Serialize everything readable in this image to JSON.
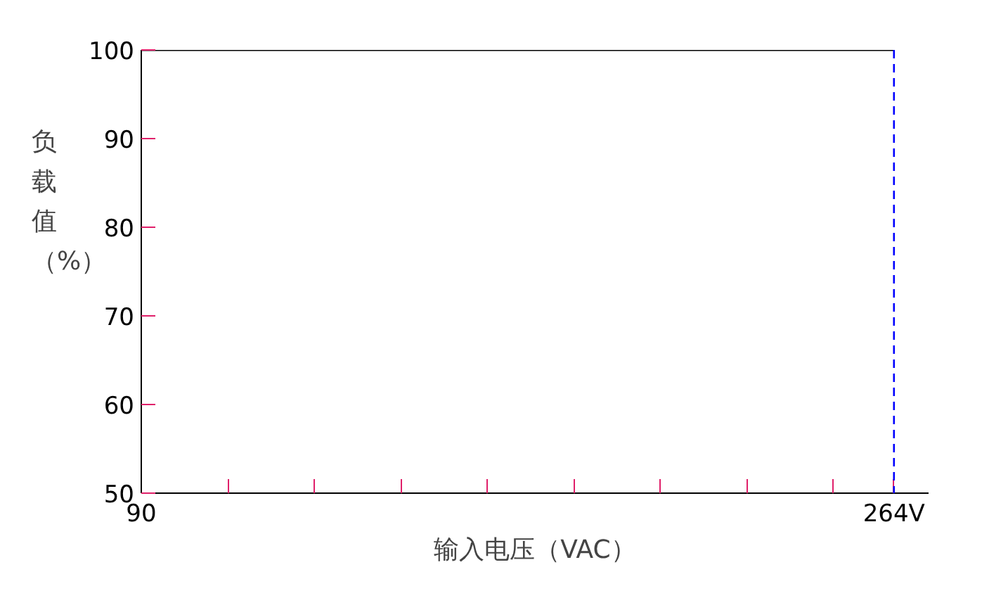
{
  "chart_data": {
    "type": "line",
    "xlabel": "输入电压（VAC）",
    "ylabel": "负载值（%）",
    "x": [
      90,
      264
    ],
    "series": [
      {
        "color": "#000000",
        "values": [
          100,
          100
        ]
      }
    ],
    "xlim": [
      90,
      272
    ],
    "ylim": [
      50,
      100
    ],
    "xticks": [
      90,
      {
        "value": 110,
        "label": null
      },
      {
        "value": 130,
        "label": null
      },
      {
        "value": 150,
        "label": null
      },
      {
        "value": 170,
        "label": null
      },
      {
        "value": 190,
        "label": null
      },
      {
        "value": 210,
        "label": null
      },
      {
        "value": 230,
        "label": null
      },
      {
        "value": 250,
        "label": null
      },
      {
        "value": 264,
        "label": "264V"
      }
    ],
    "yticks": [
      50,
      60,
      70,
      80,
      90,
      100
    ],
    "ref_lines": [
      {
        "axis": "x",
        "value": 264,
        "color": "#0000ff",
        "line_style": "dashed"
      }
    ],
    "grid": false,
    "marker": "none",
    "line_style": "solid"
  }
}
